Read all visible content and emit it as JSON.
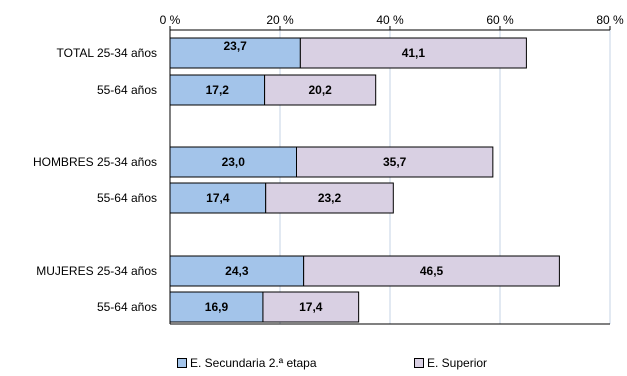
{
  "chart_data": {
    "type": "bar",
    "orientation": "horizontal",
    "stacked": true,
    "title": "",
    "xlabel": "",
    "ylabel": "",
    "xlim": [
      0,
      80
    ],
    "x_ticks": [
      0,
      20,
      40,
      60,
      80
    ],
    "x_tick_labels": [
      "0 %",
      "20 %",
      "40 %",
      "60 %",
      "80 %"
    ],
    "x_axis_position": "top",
    "grid": "vertical",
    "legend_position": "bottom",
    "categories": [
      {
        "group": "TOTAL",
        "age": "25-34 años",
        "label": "TOTAL 25-34 años"
      },
      {
        "group": "TOTAL",
        "age": "55-64 años",
        "label": "55-64 años"
      },
      {
        "group": "HOMBRES",
        "age": "25-34 años",
        "label": "HOMBRES  25-34 años"
      },
      {
        "group": "HOMBRES",
        "age": "55-64 años",
        "label": "55-64 años"
      },
      {
        "group": "MUJERES",
        "age": "25-34 años",
        "label": "MUJERES 25-34 años"
      },
      {
        "group": "MUJERES",
        "age": "55-64 años",
        "label": "55-64 años"
      }
    ],
    "series": [
      {
        "name": "E. Secundaria 2.ª etapa",
        "color": "#a3c4ea",
        "values": [
          23.7,
          17.2,
          23.0,
          17.4,
          24.3,
          16.9
        ],
        "value_labels": [
          "23,7",
          "17,2",
          "23,0",
          "17,4",
          "24,3",
          "16,9"
        ]
      },
      {
        "name": "E. Superior",
        "color": "#d9d0e3",
        "values": [
          41.1,
          20.2,
          35.7,
          23.2,
          46.5,
          17.4
        ],
        "value_labels": [
          "41,1",
          "20,2",
          "35,7",
          "23,2",
          "46,5",
          "17,4"
        ]
      }
    ]
  }
}
